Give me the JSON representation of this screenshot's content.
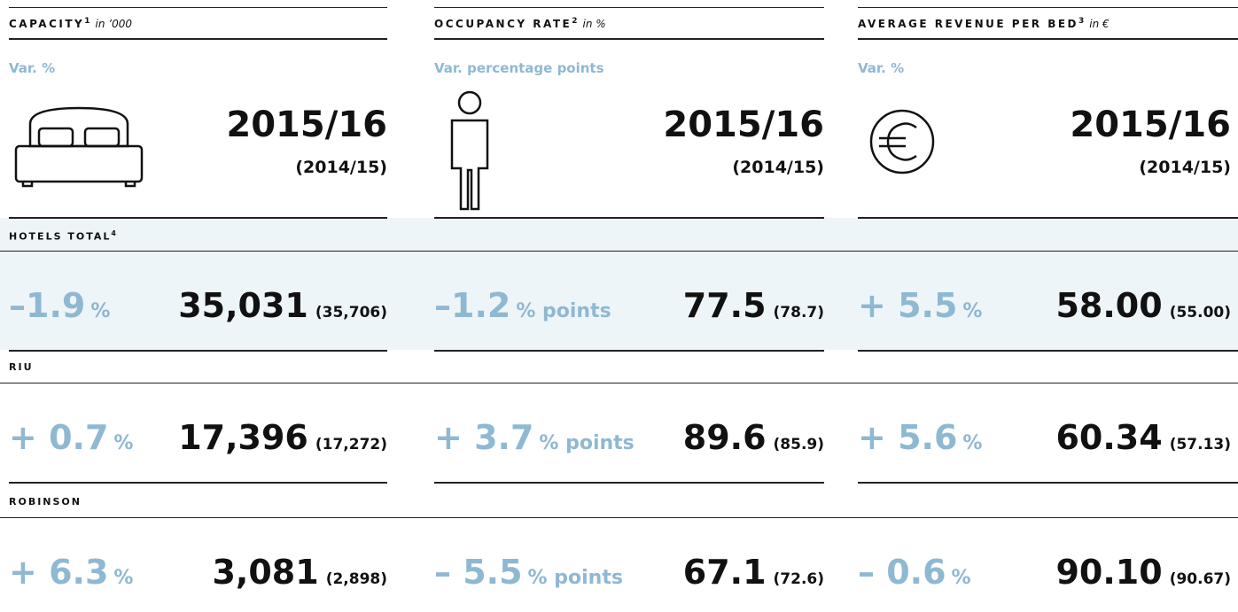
{
  "columns": [
    {
      "title": "CAPACITY",
      "footnote": "1",
      "unit": "in ’000",
      "var_label": "Var. %",
      "period": "2015/16",
      "prior_period": "(2014/15)"
    },
    {
      "title": "OCCUPANCY RATE",
      "footnote": "2",
      "unit": "in %",
      "var_label": "Var. percentage points",
      "period": "2015/16",
      "prior_period": "(2014/15)"
    },
    {
      "title": "AVERAGE REVENUE PER BED",
      "footnote": "3",
      "unit": "in €",
      "var_label": "Var. %",
      "period": "2015/16",
      "prior_period": "(2014/15)"
    }
  ],
  "rows": [
    {
      "label": "HOTELS TOTAL",
      "footnote": "4",
      "cells": [
        {
          "change": "–1.9",
          "change_unit": "%",
          "value": "35,031",
          "prior": "(35,706)"
        },
        {
          "change": "–1.2",
          "change_unit": "% points",
          "value": "77.5",
          "prior": "(78.7)"
        },
        {
          "change": "+ 5.5",
          "change_unit": "%",
          "value": "58.00",
          "prior": "(55.00)"
        }
      ]
    },
    {
      "label": "RIU",
      "cells": [
        {
          "change": "+ 0.7",
          "change_unit": "%",
          "value": "17,396",
          "prior": "(17,272)"
        },
        {
          "change": "+ 3.7",
          "change_unit": "% points",
          "value": "89.6",
          "prior": "(85.9)"
        },
        {
          "change": "+ 5.6",
          "change_unit": "%",
          "value": "60.34",
          "prior": "(57.13)"
        }
      ]
    },
    {
      "label": "ROBINSON",
      "cells": [
        {
          "change": "+ 6.3",
          "change_unit": "%",
          "value": "3,081",
          "prior": "(2,898)"
        },
        {
          "change": "– 5.5",
          "change_unit": "% points",
          "value": "67.1",
          "prior": "(72.6)"
        },
        {
          "change": "– 0.6",
          "change_unit": "%",
          "value": "90.10",
          "prior": "(90.67)"
        }
      ]
    }
  ]
}
